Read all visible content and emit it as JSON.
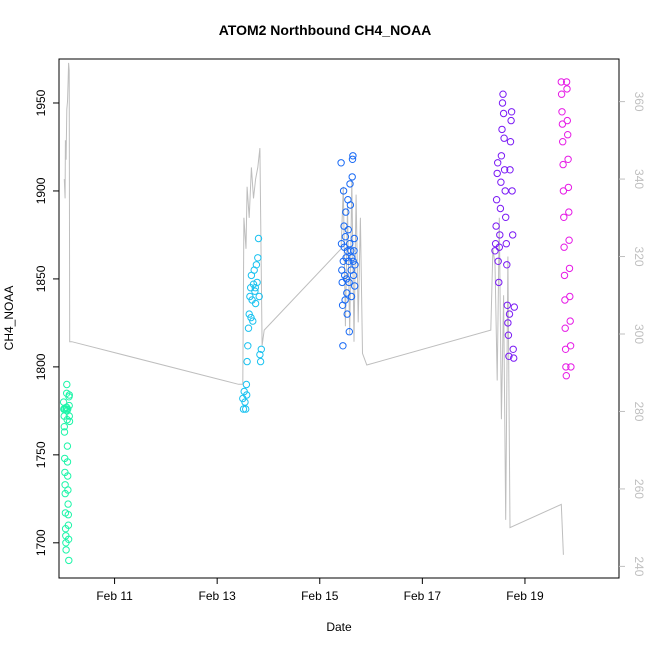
{
  "chart_data": {
    "type": "scatter",
    "title": "ATOM2 Northbound CH4_NOAA",
    "xlabel": "Date",
    "ylabel": "CH4_NOAA",
    "y2label": "",
    "x_is_date": true,
    "x_reference_year": 2017,
    "xlim": [
      "2017-02-09T22:00",
      "2017-02-20T20:00"
    ],
    "ylim": [
      1680,
      1975
    ],
    "y2lim": [
      237,
      371
    ],
    "x_ticks": [
      {
        "date": "2017-02-11",
        "label": "Feb 11"
      },
      {
        "date": "2017-02-13",
        "label": "Feb 13"
      },
      {
        "date": "2017-02-15",
        "label": "Feb 15"
      },
      {
        "date": "2017-02-17",
        "label": "Feb 17"
      },
      {
        "date": "2017-02-19",
        "label": "Feb 19"
      }
    ],
    "y_ticks": [
      1700,
      1750,
      1800,
      1850,
      1900,
      1950
    ],
    "y2_ticks": [
      240,
      260,
      280,
      300,
      320,
      340,
      360
    ],
    "grid": false,
    "legend": "none",
    "colors": {
      "background_line": "#bebebe",
      "axis": "#000000",
      "right_axis": "#bfbfbf"
    },
    "background_series": {
      "axis": "right",
      "color": "#bebebe",
      "points": [
        [
          "2017-02-10T00:30",
          340
        ],
        [
          "2017-02-10T00:50",
          335
        ],
        [
          "2017-02-10T01:00",
          350
        ],
        [
          "2017-02-10T01:20",
          345
        ],
        [
          "2017-02-10T01:40",
          358
        ],
        [
          "2017-02-10T02:00",
          360
        ],
        [
          "2017-02-10T02:15",
          365
        ],
        [
          "2017-02-10T02:30",
          370
        ],
        [
          "2017-02-10T02:45",
          368
        ],
        [
          "2017-02-10T03:00",
          298
        ],
        [
          "2017-02-10T04:00",
          298
        ],
        [
          "2017-02-13T10:00",
          287
        ],
        [
          "2017-02-13T12:00",
          287
        ],
        [
          "2017-02-13T12:30",
          330
        ],
        [
          "2017-02-13T13:30",
          322
        ],
        [
          "2017-02-13T14:00",
          338
        ],
        [
          "2017-02-13T15:00",
          330
        ],
        [
          "2017-02-13T16:00",
          343
        ],
        [
          "2017-02-13T17:00",
          335
        ],
        [
          "2017-02-13T18:00",
          340
        ],
        [
          "2017-02-13T19:00",
          343
        ],
        [
          "2017-02-13T20:00",
          348
        ],
        [
          "2017-02-13T21:00",
          297
        ],
        [
          "2017-02-13T22:00",
          301
        ],
        [
          "2017-02-15T10:00",
          322
        ],
        [
          "2017-02-15T11:00",
          338
        ],
        [
          "2017-02-15T12:00",
          302
        ],
        [
          "2017-02-15T13:00",
          333
        ],
        [
          "2017-02-15T14:00",
          300
        ],
        [
          "2017-02-15T15:00",
          340
        ],
        [
          "2017-02-15T16:00",
          298
        ],
        [
          "2017-02-15T17:00",
          336
        ],
        [
          "2017-02-15T18:00",
          303
        ],
        [
          "2017-02-15T19:00",
          330
        ],
        [
          "2017-02-15T20:00",
          295
        ],
        [
          "2017-02-15T22:00",
          292
        ],
        [
          "2017-02-18T08:00",
          301
        ],
        [
          "2017-02-18T09:00",
          322
        ],
        [
          "2017-02-18T10:00",
          318
        ],
        [
          "2017-02-18T11:00",
          288
        ],
        [
          "2017-02-18T12:00",
          330
        ],
        [
          "2017-02-18T13:00",
          278
        ],
        [
          "2017-02-18T14:00",
          310
        ],
        [
          "2017-02-18T15:00",
          252
        ],
        [
          "2017-02-18T16:00",
          320
        ],
        [
          "2017-02-18T17:00",
          250
        ],
        [
          "2017-02-19T17:00",
          256
        ],
        [
          "2017-02-19T18:00",
          243
        ]
      ]
    },
    "series": [
      {
        "color": "#1cf5a8",
        "points": [
          [
            "2017-02-10T00:10",
            1780
          ],
          [
            "2017-02-10T00:20",
            1776
          ],
          [
            "2017-02-10T00:25",
            1772
          ],
          [
            "2017-02-10T00:30",
            1766
          ],
          [
            "2017-02-10T00:35",
            1763
          ],
          [
            "2017-02-10T00:40",
            1748
          ],
          [
            "2017-02-10T00:45",
            1740
          ],
          [
            "2017-02-10T00:50",
            1733
          ],
          [
            "2017-02-10T00:55",
            1728
          ],
          [
            "2017-02-10T01:00",
            1717
          ],
          [
            "2017-02-10T01:05",
            1708
          ],
          [
            "2017-02-10T01:10",
            1704
          ],
          [
            "2017-02-10T01:15",
            1700
          ],
          [
            "2017-02-10T01:20",
            1696
          ],
          [
            "2017-02-10T01:30",
            1777
          ],
          [
            "2017-02-10T01:35",
            1785
          ],
          [
            "2017-02-10T01:40",
            1790
          ],
          [
            "2017-02-10T01:45",
            1775
          ],
          [
            "2017-02-10T01:50",
            1770
          ],
          [
            "2017-02-10T01:55",
            1755
          ],
          [
            "2017-02-10T02:00",
            1746
          ],
          [
            "2017-02-10T02:05",
            1738
          ],
          [
            "2017-02-10T02:10",
            1730
          ],
          [
            "2017-02-10T02:15",
            1722
          ],
          [
            "2017-02-10T02:20",
            1716
          ],
          [
            "2017-02-10T02:25",
            1710
          ],
          [
            "2017-02-10T02:30",
            1702
          ],
          [
            "2017-02-10T02:35",
            1690
          ],
          [
            "2017-02-10T02:40",
            1783
          ],
          [
            "2017-02-10T02:45",
            1778
          ],
          [
            "2017-02-10T02:50",
            1772
          ],
          [
            "2017-02-10T02:55",
            1769
          ],
          [
            "2017-02-10T00:15",
            1776
          ],
          [
            "2017-02-10T00:45",
            1776
          ],
          [
            "2017-02-10T01:25",
            1776
          ],
          [
            "2017-02-10T02:05",
            1776
          ],
          [
            "2017-02-10T02:50",
            1784
          ]
        ]
      },
      {
        "color": "#19c2f0",
        "points": [
          [
            "2017-02-13T12:00",
            1782
          ],
          [
            "2017-02-13T12:20",
            1776
          ],
          [
            "2017-02-13T12:40",
            1786
          ],
          [
            "2017-02-13T13:00",
            1780
          ],
          [
            "2017-02-13T13:20",
            1776
          ],
          [
            "2017-02-13T13:40",
            1790
          ],
          [
            "2017-02-13T14:00",
            1803
          ],
          [
            "2017-02-13T14:20",
            1812
          ],
          [
            "2017-02-13T14:40",
            1822
          ],
          [
            "2017-02-13T15:00",
            1830
          ],
          [
            "2017-02-13T15:20",
            1840
          ],
          [
            "2017-02-13T15:40",
            1845
          ],
          [
            "2017-02-13T16:00",
            1852
          ],
          [
            "2017-02-13T16:20",
            1838
          ],
          [
            "2017-02-13T16:40",
            1826
          ],
          [
            "2017-02-13T17:00",
            1847
          ],
          [
            "2017-02-13T17:20",
            1855
          ],
          [
            "2017-02-13T17:40",
            1843
          ],
          [
            "2017-02-13T18:00",
            1836
          ],
          [
            "2017-02-13T18:20",
            1858
          ],
          [
            "2017-02-13T18:40",
            1848
          ],
          [
            "2017-02-13T19:00",
            1862
          ],
          [
            "2017-02-13T19:20",
            1873
          ],
          [
            "2017-02-13T19:40",
            1840
          ],
          [
            "2017-02-13T20:00",
            1807
          ],
          [
            "2017-02-13T20:20",
            1803
          ],
          [
            "2017-02-13T20:40",
            1810
          ],
          [
            "2017-02-13T13:50",
            1784
          ],
          [
            "2017-02-13T15:50",
            1828
          ],
          [
            "2017-02-13T17:50",
            1845
          ]
        ]
      },
      {
        "color": "#1769f5",
        "points": [
          [
            "2017-02-15T10:00",
            1916
          ],
          [
            "2017-02-15T10:10",
            1870
          ],
          [
            "2017-02-15T10:20",
            1855
          ],
          [
            "2017-02-15T10:30",
            1848
          ],
          [
            "2017-02-15T10:40",
            1835
          ],
          [
            "2017-02-15T10:50",
            1812
          ],
          [
            "2017-02-15T11:00",
            1860
          ],
          [
            "2017-02-15T11:10",
            1900
          ],
          [
            "2017-02-15T11:20",
            1880
          ],
          [
            "2017-02-15T11:30",
            1868
          ],
          [
            "2017-02-15T11:40",
            1852
          ],
          [
            "2017-02-15T11:50",
            1838
          ],
          [
            "2017-02-15T12:00",
            1874
          ],
          [
            "2017-02-15T12:10",
            1888
          ],
          [
            "2017-02-15T12:20",
            1862
          ],
          [
            "2017-02-15T12:30",
            1850
          ],
          [
            "2017-02-15T12:40",
            1842
          ],
          [
            "2017-02-15T12:50",
            1830
          ],
          [
            "2017-02-15T13:00",
            1866
          ],
          [
            "2017-02-15T13:10",
            1895
          ],
          [
            "2017-02-15T13:20",
            1878
          ],
          [
            "2017-02-15T13:30",
            1860
          ],
          [
            "2017-02-15T13:40",
            1848
          ],
          [
            "2017-02-15T13:50",
            1820
          ],
          [
            "2017-02-15T14:00",
            1870
          ],
          [
            "2017-02-15T14:10",
            1904
          ],
          [
            "2017-02-15T14:20",
            1892
          ],
          [
            "2017-02-15T14:30",
            1866
          ],
          [
            "2017-02-15T14:40",
            1855
          ],
          [
            "2017-02-15T14:50",
            1840
          ],
          [
            "2017-02-15T15:00",
            1862
          ],
          [
            "2017-02-15T15:10",
            1908
          ],
          [
            "2017-02-15T15:20",
            1918
          ],
          [
            "2017-02-15T15:30",
            1920
          ],
          [
            "2017-02-15T15:40",
            1860
          ],
          [
            "2017-02-15T15:50",
            1852
          ],
          [
            "2017-02-15T16:00",
            1866
          ],
          [
            "2017-02-15T16:10",
            1873
          ],
          [
            "2017-02-15T16:20",
            1846
          ],
          [
            "2017-02-15T16:30",
            1858
          ]
        ]
      },
      {
        "color": "#7a1af5",
        "points": [
          [
            "2017-02-18T10:00",
            1866
          ],
          [
            "2017-02-18T10:15",
            1870
          ],
          [
            "2017-02-18T10:30",
            1880
          ],
          [
            "2017-02-18T10:45",
            1895
          ],
          [
            "2017-02-18T11:00",
            1910
          ],
          [
            "2017-02-18T11:15",
            1916
          ],
          [
            "2017-02-18T11:30",
            1860
          ],
          [
            "2017-02-18T11:45",
            1848
          ],
          [
            "2017-02-18T12:00",
            1868
          ],
          [
            "2017-02-18T12:15",
            1875
          ],
          [
            "2017-02-18T12:30",
            1890
          ],
          [
            "2017-02-18T12:45",
            1905
          ],
          [
            "2017-02-18T13:00",
            1920
          ],
          [
            "2017-02-18T13:15",
            1935
          ],
          [
            "2017-02-18T13:30",
            1950
          ],
          [
            "2017-02-18T13:45",
            1955
          ],
          [
            "2017-02-18T14:00",
            1944
          ],
          [
            "2017-02-18T14:15",
            1930
          ],
          [
            "2017-02-18T14:30",
            1912
          ],
          [
            "2017-02-18T14:45",
            1900
          ],
          [
            "2017-02-18T15:00",
            1885
          ],
          [
            "2017-02-18T15:15",
            1870
          ],
          [
            "2017-02-18T15:30",
            1858
          ],
          [
            "2017-02-18T15:45",
            1835
          ],
          [
            "2017-02-18T16:00",
            1825
          ],
          [
            "2017-02-18T16:15",
            1818
          ],
          [
            "2017-02-18T16:30",
            1806
          ],
          [
            "2017-02-18T16:45",
            1830
          ],
          [
            "2017-02-18T17:00",
            1912
          ],
          [
            "2017-02-18T17:15",
            1928
          ],
          [
            "2017-02-18T17:30",
            1940
          ],
          [
            "2017-02-18T17:45",
            1945
          ],
          [
            "2017-02-18T18:00",
            1900
          ],
          [
            "2017-02-18T18:15",
            1875
          ],
          [
            "2017-02-18T18:30",
            1810
          ],
          [
            "2017-02-18T18:45",
            1805
          ],
          [
            "2017-02-18T19:00",
            1834
          ]
        ]
      },
      {
        "color": "#e61ae6",
        "points": [
          [
            "2017-02-19T17:00",
            1962
          ],
          [
            "2017-02-19T17:10",
            1955
          ],
          [
            "2017-02-19T17:20",
            1945
          ],
          [
            "2017-02-19T17:30",
            1938
          ],
          [
            "2017-02-19T17:40",
            1928
          ],
          [
            "2017-02-19T17:50",
            1915
          ],
          [
            "2017-02-19T18:00",
            1900
          ],
          [
            "2017-02-19T18:10",
            1885
          ],
          [
            "2017-02-19T18:20",
            1868
          ],
          [
            "2017-02-19T18:30",
            1852
          ],
          [
            "2017-02-19T18:40",
            1838
          ],
          [
            "2017-02-19T18:50",
            1822
          ],
          [
            "2017-02-19T19:00",
            1810
          ],
          [
            "2017-02-19T19:10",
            1800
          ],
          [
            "2017-02-19T19:20",
            1795
          ],
          [
            "2017-02-19T19:30",
            1962
          ],
          [
            "2017-02-19T19:40",
            1958
          ],
          [
            "2017-02-19T19:50",
            1940
          ],
          [
            "2017-02-19T20:00",
            1932
          ],
          [
            "2017-02-19T20:10",
            1918
          ],
          [
            "2017-02-19T20:20",
            1902
          ],
          [
            "2017-02-19T20:30",
            1888
          ],
          [
            "2017-02-19T20:40",
            1872
          ],
          [
            "2017-02-19T20:50",
            1856
          ],
          [
            "2017-02-19T21:00",
            1840
          ],
          [
            "2017-02-19T21:10",
            1826
          ],
          [
            "2017-02-19T21:20",
            1812
          ],
          [
            "2017-02-19T21:30",
            1800
          ]
        ]
      }
    ]
  }
}
